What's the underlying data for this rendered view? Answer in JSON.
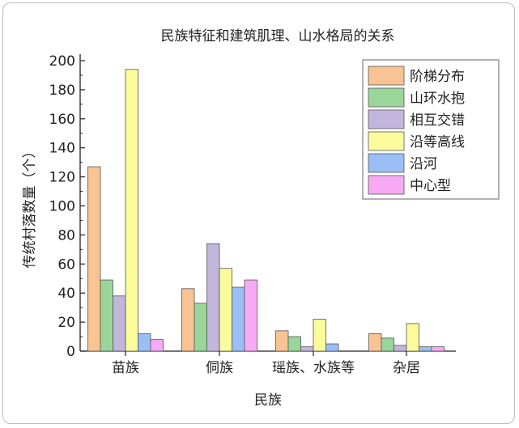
{
  "chart_data": {
    "type": "bar",
    "title": "民族特征和建筑肌理、山水格局的关系",
    "xlabel": "民族",
    "ylabel": "传统村落数量（个）",
    "ylim": [
      0,
      200
    ],
    "yticks": [
      0,
      20,
      40,
      60,
      80,
      100,
      120,
      140,
      160,
      180,
      200
    ],
    "categories": [
      "苗族",
      "侗族",
      "瑶族、水族等",
      "杂居"
    ],
    "series": [
      {
        "name": "阶梯分布",
        "color": "#f9c393",
        "values": [
          127,
          43,
          14,
          12
        ]
      },
      {
        "name": "山环水抱",
        "color": "#9ad69a",
        "values": [
          49,
          33,
          10,
          9
        ]
      },
      {
        "name": "相互交错",
        "color": "#c3b6dc",
        "values": [
          38,
          74,
          3,
          4
        ]
      },
      {
        "name": "沿等高线",
        "color": "#fbfb9c",
        "values": [
          194,
          57,
          22,
          19
        ]
      },
      {
        "name": "沿河",
        "color": "#99bff5",
        "values": [
          12,
          44,
          5,
          3
        ]
      },
      {
        "name": "中心型",
        "color": "#f9aaf5",
        "values": [
          8,
          49,
          0,
          3
        ]
      }
    ],
    "legend": "top-right",
    "grid": false
  }
}
